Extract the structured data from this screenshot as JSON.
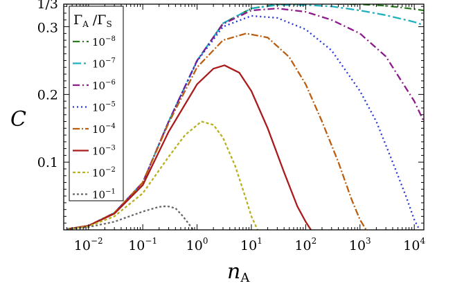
{
  "chart_data": {
    "type": "line",
    "title": "",
    "xlabel": "n",
    "xlabel_sub": "A",
    "ylabel": "C",
    "x_scale": "log",
    "xlim": [
      0.0035,
      15000
    ],
    "ylim": [
      0,
      0.3333
    ],
    "x_ticks": [
      {
        "value": 0.01,
        "base": "10",
        "exp": "−2"
      },
      {
        "value": 0.1,
        "base": "10",
        "exp": "−1"
      },
      {
        "value": 1,
        "base": "10",
        "exp": "0"
      },
      {
        "value": 10,
        "base": "10",
        "exp": "1"
      },
      {
        "value": 100,
        "base": "10",
        "exp": "2"
      },
      {
        "value": 1000,
        "base": "10",
        "exp": "3"
      },
      {
        "value": 10000,
        "base": "10",
        "exp": "4"
      }
    ],
    "y_ticks": [
      {
        "value": 0.1,
        "label": "0.1"
      },
      {
        "value": 0.2,
        "label": "0.2"
      },
      {
        "value": 0.3,
        "label": "0.3"
      },
      {
        "value": 0.3333,
        "label": "1/3"
      }
    ],
    "legend": {
      "title": "Γ",
      "title_sub_a": "A",
      "title_sep": " /Γ",
      "title_sub_b": "S",
      "position": "top-left"
    },
    "series": [
      {
        "name_base": "10",
        "name_exp": "−8",
        "color": "#2a7a1f",
        "dash": "10,4,2,4",
        "x": [
          0.004,
          0.01,
          0.03,
          0.1,
          0.3,
          1,
          3,
          10,
          30,
          100,
          300,
          1000,
          3000,
          10000,
          15000
        ],
        "y": [
          0.001,
          0.006,
          0.025,
          0.07,
          0.16,
          0.25,
          0.305,
          0.327,
          0.333,
          0.334,
          0.334,
          0.333,
          0.331,
          0.326,
          0.324
        ]
      },
      {
        "name_base": "10",
        "name_exp": "−7",
        "color": "#1fb0c0",
        "dash": "12,4,3,4",
        "x": [
          0.004,
          0.01,
          0.03,
          0.1,
          0.3,
          1,
          3,
          10,
          30,
          100,
          300,
          1000,
          3000,
          10000,
          15000
        ],
        "y": [
          0.001,
          0.006,
          0.025,
          0.07,
          0.16,
          0.25,
          0.305,
          0.327,
          0.332,
          0.332,
          0.33,
          0.324,
          0.317,
          0.307,
          0.302
        ]
      },
      {
        "name_base": "10",
        "name_exp": "−6",
        "color": "#8c1a8c",
        "dash": "10,4,2,4",
        "x": [
          0.004,
          0.01,
          0.03,
          0.1,
          0.3,
          1,
          3,
          10,
          30,
          100,
          300,
          1000,
          3000,
          10000,
          15000
        ],
        "y": [
          0.001,
          0.006,
          0.025,
          0.07,
          0.16,
          0.25,
          0.304,
          0.324,
          0.327,
          0.322,
          0.31,
          0.29,
          0.256,
          0.19,
          0.16
        ]
      },
      {
        "name_base": "10",
        "name_exp": "−5",
        "color": "#2233dd",
        "dash": "2,4",
        "x": [
          0.004,
          0.01,
          0.03,
          0.1,
          0.3,
          1,
          3,
          10,
          30,
          100,
          300,
          1000,
          2000,
          4000,
          7000,
          10000,
          12500
        ],
        "y": [
          0.001,
          0.006,
          0.025,
          0.07,
          0.16,
          0.249,
          0.3,
          0.316,
          0.313,
          0.296,
          0.265,
          0.205,
          0.16,
          0.1,
          0.05,
          0.015,
          0.0
        ]
      },
      {
        "name_base": "10",
        "name_exp": "−4",
        "color": "#bb5e10",
        "dash": "10,3,2,3",
        "x": [
          0.004,
          0.01,
          0.03,
          0.1,
          0.3,
          1,
          3,
          8,
          20,
          50,
          100,
          200,
          400,
          700,
          1000,
          1300
        ],
        "y": [
          0.001,
          0.006,
          0.025,
          0.07,
          0.158,
          0.24,
          0.28,
          0.29,
          0.284,
          0.255,
          0.215,
          0.16,
          0.1,
          0.045,
          0.015,
          0.0
        ]
      },
      {
        "name_base": "10",
        "name_exp": "−3",
        "color": "#aa1a1a",
        "dash": "",
        "x": [
          0.004,
          0.01,
          0.03,
          0.1,
          0.3,
          1,
          2,
          3.2,
          6,
          10,
          20,
          40,
          70,
          100,
          125
        ],
        "y": [
          0.001,
          0.006,
          0.024,
          0.066,
          0.145,
          0.215,
          0.238,
          0.243,
          0.232,
          0.205,
          0.15,
          0.085,
          0.035,
          0.012,
          0.0
        ]
      },
      {
        "name_base": "10",
        "name_exp": "−2",
        "color": "#b8b01c",
        "dash": "4,3",
        "x": [
          0.004,
          0.01,
          0.03,
          0.1,
          0.3,
          0.6,
          1.2,
          2,
          3,
          5,
          8,
          10,
          13
        ],
        "y": [
          0.001,
          0.005,
          0.02,
          0.054,
          0.108,
          0.14,
          0.16,
          0.155,
          0.136,
          0.095,
          0.045,
          0.02,
          0.0
        ]
      },
      {
        "name_base": "10",
        "name_exp": "−1",
        "color": "#666666",
        "dash": "3,3",
        "x": [
          0.004,
          0.01,
          0.03,
          0.1,
          0.2,
          0.28,
          0.4,
          0.55,
          0.7,
          0.85
        ],
        "y": [
          0.001,
          0.004,
          0.012,
          0.027,
          0.034,
          0.035,
          0.032,
          0.02,
          0.009,
          0.0
        ]
      }
    ]
  }
}
